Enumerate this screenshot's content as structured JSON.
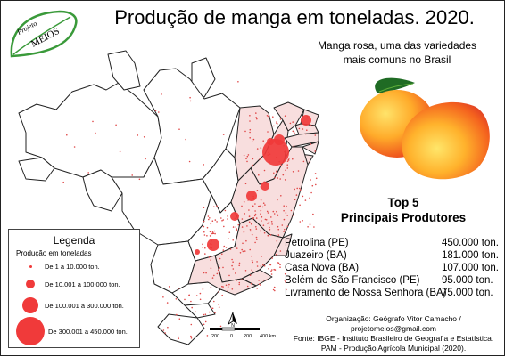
{
  "title": "Produção de manga em toneladas. 2020.",
  "logo": {
    "line1": "Projeto",
    "line2": "MEIOS"
  },
  "subtitle": {
    "line1": "Manga rosa, uma das variedades",
    "line2": "mais comuns no Brasil"
  },
  "top5": {
    "title_line1": "Top 5",
    "title_line2": "Principais Produtores",
    "items": [
      {
        "city": "Petrolina (PE)",
        "tons": "450.000 ton."
      },
      {
        "city": "Juazeiro (BA)",
        "tons": "181.000 ton."
      },
      {
        "city": "Casa Nova (BA)",
        "tons": "107.000 ton."
      },
      {
        "city": "Belém do São Francisco (PE)",
        "tons": "95.000 ton."
      },
      {
        "city": "Livramento de Nossa Senhora (BA)",
        "tons": "75.000 ton."
      }
    ]
  },
  "credits": {
    "line1": "Organização: Geógrafo Vitor Camacho /",
    "line2": "projetomeios@gmail.com",
    "line3": "Fonte: IBGE - Instituto Brasileiro de Geografia e Estatística.",
    "line4": "PAM - Produção Agrícola Municipal (2020)."
  },
  "legend": {
    "title": "Legenda",
    "subtitle": "Produção em toneladas",
    "classes": [
      "De 1 a 10.000 ton.",
      "De 10.001 a 100.000 ton.",
      "De 100.001 a 300.000 ton.",
      "De 300.001 a 450.000 ton."
    ]
  },
  "scale": {
    "labels": [
      "200",
      "0",
      "200",
      "400 km"
    ]
  },
  "north_label": "N",
  "colors": {
    "symbol": "#f03a3a",
    "region_fill": "#f8dede",
    "border": "#222222",
    "logo_green": "#3a9a3a"
  }
}
